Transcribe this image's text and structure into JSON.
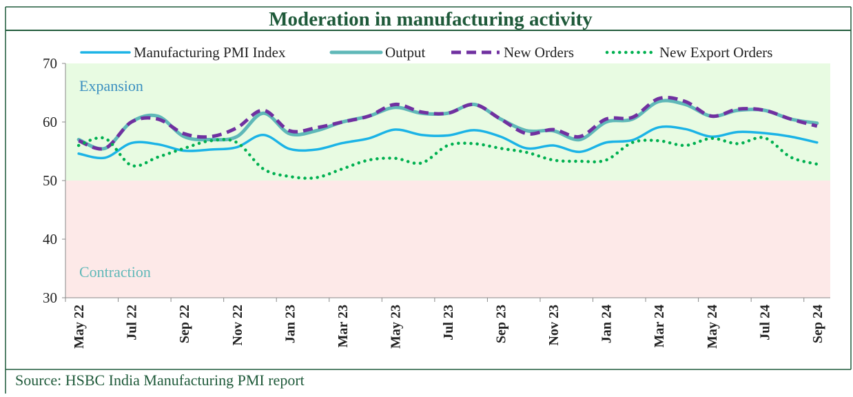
{
  "chart_data": {
    "type": "line",
    "title": "Moderation in manufacturing activity",
    "source": "Source: HSBC India Manufacturing PMI report",
    "categories": [
      "May 22",
      null,
      "Jul 22",
      null,
      "Sep 22",
      null,
      "Nov 22",
      null,
      "Jan 23",
      null,
      "Mar 23",
      null,
      "May 23",
      null,
      "Jul 23",
      null,
      "Sep 23",
      null,
      "Nov 23",
      null,
      "Jan 24",
      null,
      "Mar 24",
      null,
      "May 24",
      null,
      "Jul 24",
      null,
      "Sep 24"
    ],
    "series": [
      {
        "name": "Manufacturing PMI Index",
        "color": "#1bb3e6",
        "style": "solid",
        "values": [
          54.6,
          53.9,
          56.4,
          56.2,
          55.1,
          55.3,
          55.7,
          57.8,
          55.4,
          55.3,
          56.4,
          57.2,
          58.7,
          57.8,
          57.7,
          58.6,
          57.5,
          55.5,
          56.0,
          54.9,
          56.5,
          56.9,
          59.1,
          58.8,
          57.5,
          58.3,
          58.1,
          57.5,
          56.5
        ]
      },
      {
        "name": "Output",
        "color": "#5fb8b8",
        "style": "thick",
        "values": [
          57,
          55.5,
          60,
          61,
          57.5,
          57,
          57.5,
          61.5,
          58,
          58.5,
          60,
          61,
          62.5,
          61.5,
          61.5,
          63,
          60.5,
          58.5,
          58.5,
          57,
          60,
          60.5,
          63.5,
          63,
          61,
          62,
          62,
          60.5,
          59.8
        ]
      },
      {
        "name": "New Orders",
        "color": "#7030a0",
        "style": "dashed",
        "values": [
          56.8,
          55.5,
          60,
          60.5,
          58,
          57.5,
          59,
          62,
          58.5,
          59,
          60,
          61,
          63,
          61.7,
          61.5,
          63,
          60.5,
          58,
          58.7,
          57.5,
          60.5,
          60.8,
          64,
          63.5,
          61,
          62.2,
          62,
          60.5,
          59.3
        ]
      },
      {
        "name": "New Export Orders",
        "color": "#00b050",
        "style": "dotted",
        "values": [
          56,
          57.2,
          52.6,
          54,
          55.5,
          56.8,
          56.5,
          52,
          50.7,
          50.5,
          52,
          53.5,
          53.8,
          53,
          56,
          56.3,
          55.5,
          54.8,
          53.5,
          53.3,
          53.5,
          56.5,
          56.8,
          56,
          57.2,
          56.3,
          57.3,
          54,
          52.8
        ]
      }
    ],
    "regions": [
      {
        "label": "Expansion",
        "range": [
          50,
          70
        ],
        "color": "#e8fbe2"
      },
      {
        "label": "Contraction",
        "range": [
          30,
          50
        ],
        "color": "#fde9e8"
      }
    ],
    "ylim": [
      30,
      70
    ],
    "yticks": [
      30,
      40,
      50,
      60,
      70
    ]
  }
}
